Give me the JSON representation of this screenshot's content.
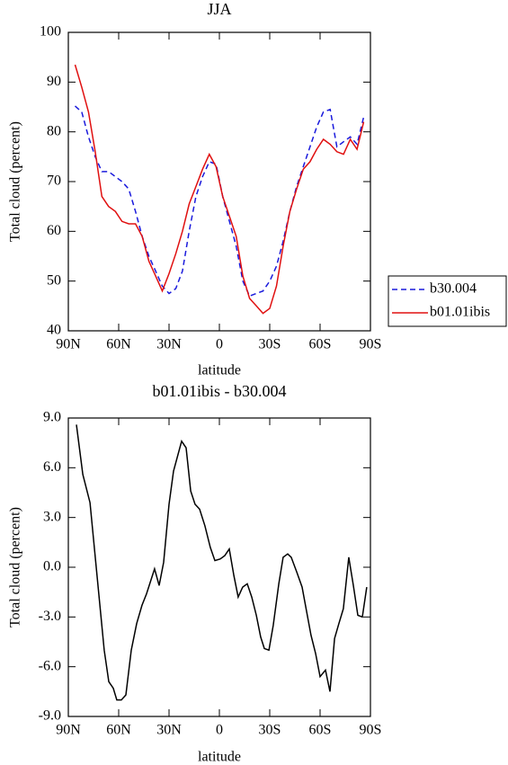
{
  "chart_data": [
    {
      "type": "line",
      "title": "JJA",
      "xlabel": "latitude",
      "ylabel": "Total cloud (percent)",
      "x": [
        86,
        82,
        78,
        74,
        70,
        66,
        62,
        58,
        54,
        50,
        46,
        42,
        38,
        34,
        30,
        26,
        22,
        18,
        14,
        10,
        6,
        2,
        -2,
        -6,
        -10,
        -14,
        -18,
        -22,
        -26,
        -30,
        -34,
        -38,
        -42,
        -46,
        -50,
        -54,
        -58,
        -62,
        -66,
        -70,
        -74,
        -78,
        -82,
        -86
      ],
      "series": [
        {
          "name": "b30.004",
          "color": "#1a1adc",
          "line_style": "dashed",
          "values": [
            85.2,
            84,
            79,
            75,
            72,
            72,
            71,
            70,
            68.5,
            64,
            59,
            55,
            52,
            49,
            47.5,
            48.5,
            52,
            60,
            67,
            71,
            74,
            73.5,
            67,
            62,
            57,
            50,
            47,
            47.5,
            48,
            50,
            53,
            58,
            64,
            69,
            73,
            77,
            81,
            84,
            84.5,
            77,
            78,
            79,
            77.5,
            83
          ]
        },
        {
          "name": "b01.01ibis",
          "color": "#e01010",
          "line_style": "solid",
          "values": [
            93.5,
            89,
            84,
            76,
            67,
            65,
            64,
            62,
            61.5,
            61.5,
            59,
            54,
            51,
            48,
            51.5,
            55.5,
            60,
            65.5,
            69,
            72.5,
            75.5,
            73,
            67,
            63,
            59,
            51,
            46.5,
            45,
            43.5,
            44.5,
            49,
            57,
            64,
            68.5,
            72.5,
            74,
            76.5,
            78.5,
            77.5,
            76,
            75.5,
            78.5,
            76.5,
            82
          ]
        }
      ],
      "xlim": [
        90,
        -90
      ],
      "xticks": [
        {
          "value": 90,
          "label": "90N"
        },
        {
          "value": 60,
          "label": "60N"
        },
        {
          "value": 30,
          "label": "30N"
        },
        0,
        {
          "value": -30,
          "label": "30S"
        },
        {
          "value": -60,
          "label": "60S"
        },
        {
          "value": -90,
          "label": "90S"
        }
      ],
      "ylim": [
        40,
        100
      ],
      "yticks": [
        40,
        50,
        60,
        70,
        80,
        90,
        100
      ],
      "legend": "right"
    },
    {
      "type": "line",
      "title": "b01.01ibis - b30.004",
      "xlabel": "latitude",
      "ylabel": "Total cloud (percent)",
      "color": "#000000",
      "x": [
        85.2,
        81.4,
        77.1,
        68.6,
        65.9,
        63.2,
        61.1,
        58.4,
        55.7,
        52.5,
        49.3,
        46.1,
        43.4,
        38.6,
        35.9,
        33.2,
        30.0,
        27.3,
        22.5,
        19.8,
        17.1,
        14.5,
        11.8,
        8.6,
        5.4,
        2.7,
        -0.5,
        -3.2,
        -5.9,
        -8.6,
        -11.2,
        -13.9,
        -16.6,
        -19.3,
        -22.0,
        -24.6,
        -26.8,
        -29.5,
        -32.1,
        -35.4,
        -38.0,
        -40.7,
        -42.8,
        -46.1,
        -49.3,
        -52.0,
        -54.6,
        -57.3,
        -60.0,
        -63.2,
        -65.9,
        -68.6,
        -71.2,
        -73.9,
        -77.1,
        -79.8,
        -82.5,
        -85.2,
        -87.8
      ],
      "values": [
        8.6,
        5.6,
        3.9,
        -5,
        -6.9,
        -7.3,
        -8,
        -8,
        -7.7,
        -5,
        -3.4,
        -2.3,
        -1.6,
        -0.1,
        -1.1,
        0.3,
        3.8,
        5.8,
        7.6,
        7.2,
        4.6,
        3.8,
        3.5,
        2.5,
        1.2,
        0.4,
        0.5,
        0.7,
        1.1,
        -0.5,
        -1.8,
        -1.2,
        -1.0,
        -1.8,
        -2.9,
        -4.2,
        -4.9,
        -5,
        -3.5,
        -1,
        0.6,
        0.8,
        0.6,
        -0.3,
        -1.2,
        -2.7,
        -4.1,
        -5.2,
        -6.6,
        -6.2,
        -7.5,
        -4.3,
        -3.4,
        -2.5,
        0.6,
        -1.1,
        -2.9,
        -3.0,
        -1.2
      ],
      "xlim": [
        90,
        -90
      ],
      "xticks": [
        {
          "value": 90,
          "label": "90N"
        },
        {
          "value": 60,
          "label": "60N"
        },
        {
          "value": 30,
          "label": "30N"
        },
        0,
        {
          "value": -30,
          "label": "30S"
        },
        {
          "value": -60,
          "label": "60S"
        },
        {
          "value": -90,
          "label": "90S"
        }
      ],
      "ylim": [
        -9,
        9
      ],
      "yticks": [
        {
          "value": -9,
          "label": "-9.0"
        },
        {
          "value": -6,
          "label": "-6.0"
        },
        {
          "value": -3,
          "label": "-3.0"
        },
        {
          "value": 0,
          "label": "0.0"
        },
        {
          "value": 3,
          "label": "3.0"
        },
        {
          "value": 6,
          "label": "6.0"
        },
        {
          "value": 9,
          "label": "9.0"
        }
      ]
    }
  ]
}
